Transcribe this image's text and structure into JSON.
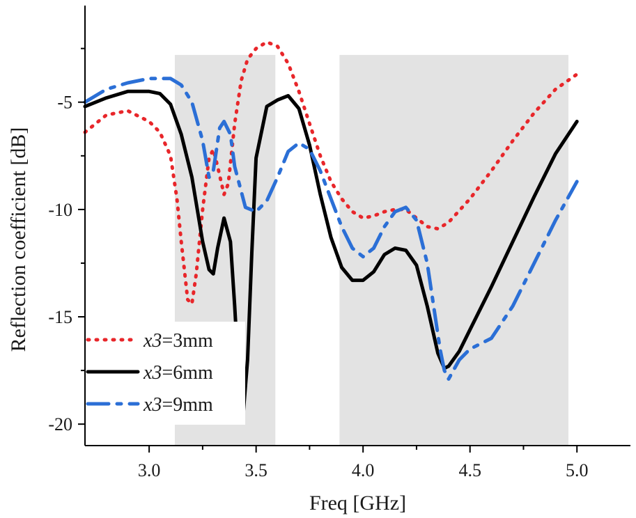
{
  "chart_data": {
    "type": "line",
    "title": "",
    "xlabel": "Freq [GHz]",
    "ylabel": "Reflection coefficient [dB]",
    "xlim": [
      2.7,
      5.25
    ],
    "ylim": [
      -21,
      -0.5
    ],
    "xticks": [
      3.0,
      3.5,
      4.0,
      4.5,
      5.0
    ],
    "xtick_labels": [
      "3.0",
      "3.5",
      "4.0",
      "4.5",
      "5.0"
    ],
    "yticks": [
      -5,
      -10,
      -15,
      -20
    ],
    "ytick_labels": [
      "-5",
      "-10",
      "-15",
      "-20"
    ],
    "shaded_bands": [
      [
        3.12,
        3.59
      ],
      [
        3.89,
        4.96
      ]
    ],
    "band_color": "#e3e3e3",
    "grid": false,
    "legend_position": "bottom-left",
    "series": [
      {
        "name": "x3=3mm",
        "legend_var": "x3",
        "legend_val": "=3mm",
        "color": "#e8262a",
        "style": "dotted",
        "x": [
          2.7,
          2.8,
          2.9,
          3.0,
          3.05,
          3.1,
          3.13,
          3.15,
          3.18,
          3.2,
          3.22,
          3.25,
          3.28,
          3.3,
          3.32,
          3.35,
          3.37,
          3.4,
          3.43,
          3.46,
          3.5,
          3.55,
          3.6,
          3.65,
          3.7,
          3.75,
          3.8,
          3.85,
          3.9,
          3.95,
          4.0,
          4.05,
          4.1,
          4.15,
          4.2,
          4.25,
          4.3,
          4.35,
          4.4,
          4.5,
          4.6,
          4.7,
          4.8,
          4.9,
          5.0
        ],
        "y": [
          -6.4,
          -5.6,
          -5.4,
          -5.9,
          -6.4,
          -7.5,
          -9.5,
          -11.5,
          -14.2,
          -14.4,
          -13.0,
          -10.0,
          -7.6,
          -7.2,
          -8.0,
          -9.3,
          -8.8,
          -6.0,
          -4.0,
          -3.0,
          -2.5,
          -2.2,
          -2.4,
          -3.2,
          -4.5,
          -6.0,
          -7.5,
          -8.7,
          -9.5,
          -10.1,
          -10.4,
          -10.3,
          -10.1,
          -10.0,
          -10.0,
          -10.4,
          -10.8,
          -10.9,
          -10.6,
          -9.5,
          -8.2,
          -6.8,
          -5.5,
          -4.4,
          -3.7
        ]
      },
      {
        "name": "x3=6mm",
        "legend_var": "x3",
        "legend_val": "=6mm",
        "color": "#000000",
        "style": "solid",
        "x": [
          2.7,
          2.8,
          2.9,
          3.0,
          3.05,
          3.1,
          3.15,
          3.2,
          3.25,
          3.28,
          3.3,
          3.32,
          3.35,
          3.38,
          3.4,
          3.42,
          3.44,
          3.46,
          3.48,
          3.5,
          3.55,
          3.6,
          3.65,
          3.7,
          3.75,
          3.8,
          3.85,
          3.9,
          3.95,
          4.0,
          4.05,
          4.1,
          4.15,
          4.2,
          4.25,
          4.3,
          4.35,
          4.38,
          4.4,
          4.45,
          4.5,
          4.6,
          4.7,
          4.8,
          4.9,
          5.0
        ],
        "y": [
          -5.2,
          -4.8,
          -4.5,
          -4.5,
          -4.6,
          -5.1,
          -6.5,
          -8.5,
          -11.5,
          -12.8,
          -13.0,
          -11.8,
          -10.4,
          -11.5,
          -14.5,
          -18.0,
          -19.5,
          -17.0,
          -12.0,
          -7.6,
          -5.2,
          -4.9,
          -4.7,
          -5.3,
          -7.0,
          -9.3,
          -11.3,
          -12.7,
          -13.3,
          -13.3,
          -12.9,
          -12.1,
          -11.8,
          -11.9,
          -12.6,
          -14.5,
          -16.7,
          -17.4,
          -17.3,
          -16.6,
          -15.6,
          -13.6,
          -11.5,
          -9.4,
          -7.4,
          -5.9
        ]
      },
      {
        "name": "x3=9mm",
        "legend_var": "x3",
        "legend_val": "=9mm",
        "color": "#2b6fd6",
        "style": "dashdot",
        "x": [
          2.7,
          2.8,
          2.9,
          3.0,
          3.05,
          3.1,
          3.15,
          3.2,
          3.25,
          3.28,
          3.3,
          3.33,
          3.35,
          3.38,
          3.4,
          3.45,
          3.5,
          3.55,
          3.6,
          3.65,
          3.7,
          3.75,
          3.8,
          3.85,
          3.9,
          3.95,
          4.0,
          4.05,
          4.1,
          4.15,
          4.2,
          4.25,
          4.3,
          4.33,
          4.36,
          4.38,
          4.4,
          4.45,
          4.5,
          4.6,
          4.7,
          4.8,
          4.9,
          5.0
        ],
        "y": [
          -5.0,
          -4.4,
          -4.1,
          -3.9,
          -3.9,
          -3.9,
          -4.2,
          -5.0,
          -6.8,
          -8.5,
          -8.2,
          -6.2,
          -5.9,
          -6.5,
          -8.0,
          -9.9,
          -10.1,
          -9.6,
          -8.5,
          -7.3,
          -6.9,
          -7.2,
          -8.2,
          -9.5,
          -10.8,
          -11.8,
          -12.2,
          -11.8,
          -10.8,
          -10.1,
          -9.9,
          -10.5,
          -12.5,
          -14.5,
          -16.5,
          -17.5,
          -17.9,
          -17.0,
          -16.5,
          -16.0,
          -14.5,
          -12.5,
          -10.5,
          -8.7
        ]
      }
    ]
  }
}
